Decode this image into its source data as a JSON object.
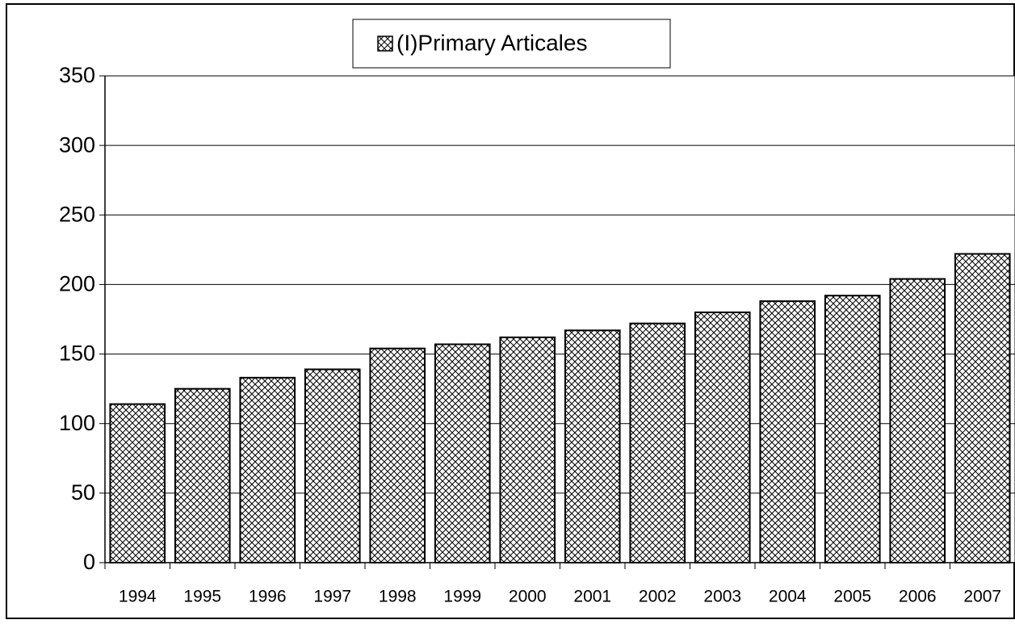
{
  "chart_data": {
    "type": "bar",
    "categories": [
      "1994",
      "1995",
      "1996",
      "1997",
      "1998",
      "1999",
      "2000",
      "2001",
      "2002",
      "2003",
      "2004",
      "2005",
      "2006",
      "2007"
    ],
    "series": [
      {
        "name": "(I)Primary Articales",
        "color": "#000000",
        "values": [
          114,
          125,
          133,
          139,
          154,
          157,
          162,
          167,
          172,
          180,
          188,
          192,
          204,
          222
        ]
      }
    ],
    "ylim": [
      0,
      350
    ],
    "yticks": [
      0,
      50,
      100,
      150,
      200,
      250,
      300,
      350
    ],
    "grid": true,
    "legend": "top"
  }
}
